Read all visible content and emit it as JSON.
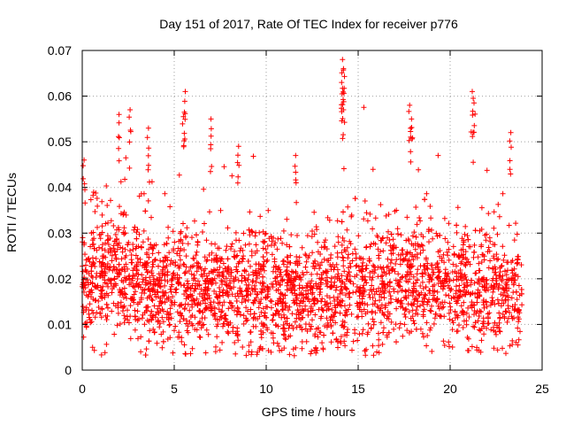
{
  "chart_data": {
    "type": "scatter",
    "title": "Day 151 of 2017, Rate Of TEC Index for receiver p776",
    "xlabel": "GPS time / hours",
    "ylabel": "ROTI / TECUs",
    "xlim": [
      0,
      25
    ],
    "ylim": [
      0,
      0.07
    ],
    "x_ticks": [
      0,
      5,
      10,
      15,
      20,
      25
    ],
    "x_tick_labels": [
      "0",
      "5",
      "10",
      "15",
      "20",
      "25"
    ],
    "y_ticks": [
      0,
      0.01,
      0.02,
      0.03,
      0.04,
      0.05,
      0.06,
      0.07
    ],
    "y_tick_labels": [
      "0",
      "0.01",
      "0.02",
      "0.03",
      "0.04",
      "0.05",
      "0.06",
      "0.07"
    ],
    "grid": true,
    "marker": "+",
    "series": [
      {
        "name": "ROTI",
        "color": "#ff0000",
        "x_range": [
          0,
          23.9
        ],
        "baseline_profile": [
          [
            0.0,
            0.018
          ],
          [
            1.0,
            0.02
          ],
          [
            2.0,
            0.022
          ],
          [
            3.0,
            0.02
          ],
          [
            4.0,
            0.018
          ],
          [
            5.0,
            0.018
          ],
          [
            6.0,
            0.017
          ],
          [
            7.0,
            0.017
          ],
          [
            8.0,
            0.017
          ],
          [
            9.0,
            0.016
          ],
          [
            10.0,
            0.017
          ],
          [
            11.0,
            0.016
          ],
          [
            12.0,
            0.016
          ],
          [
            13.0,
            0.016
          ],
          [
            14.0,
            0.017
          ],
          [
            15.0,
            0.018
          ],
          [
            16.0,
            0.019
          ],
          [
            17.0,
            0.018
          ],
          [
            18.0,
            0.019
          ],
          [
            19.0,
            0.018
          ],
          [
            20.0,
            0.018
          ],
          [
            21.0,
            0.018
          ],
          [
            22.0,
            0.018
          ],
          [
            23.0,
            0.017
          ],
          [
            23.9,
            0.017
          ]
        ],
        "spread": 0.0065,
        "floor": 0.003,
        "notable_peaks": [
          {
            "x": 0.1,
            "y": 0.046
          },
          {
            "x": 2.0,
            "y": 0.056
          },
          {
            "x": 2.6,
            "y": 0.057
          },
          {
            "x": 3.6,
            "y": 0.053
          },
          {
            "x": 5.6,
            "y": 0.061
          },
          {
            "x": 5.5,
            "y": 0.0555
          },
          {
            "x": 7.0,
            "y": 0.055
          },
          {
            "x": 8.5,
            "y": 0.049
          },
          {
            "x": 11.6,
            "y": 0.047
          },
          {
            "x": 14.15,
            "y": 0.068
          },
          {
            "x": 14.2,
            "y": 0.066
          },
          {
            "x": 14.1,
            "y": 0.063
          },
          {
            "x": 14.2,
            "y": 0.057
          },
          {
            "x": 17.8,
            "y": 0.058
          },
          {
            "x": 17.9,
            "y": 0.055
          },
          {
            "x": 21.2,
            "y": 0.061
          },
          {
            "x": 21.3,
            "y": 0.0585
          },
          {
            "x": 23.3,
            "y": 0.052
          }
        ]
      }
    ]
  }
}
